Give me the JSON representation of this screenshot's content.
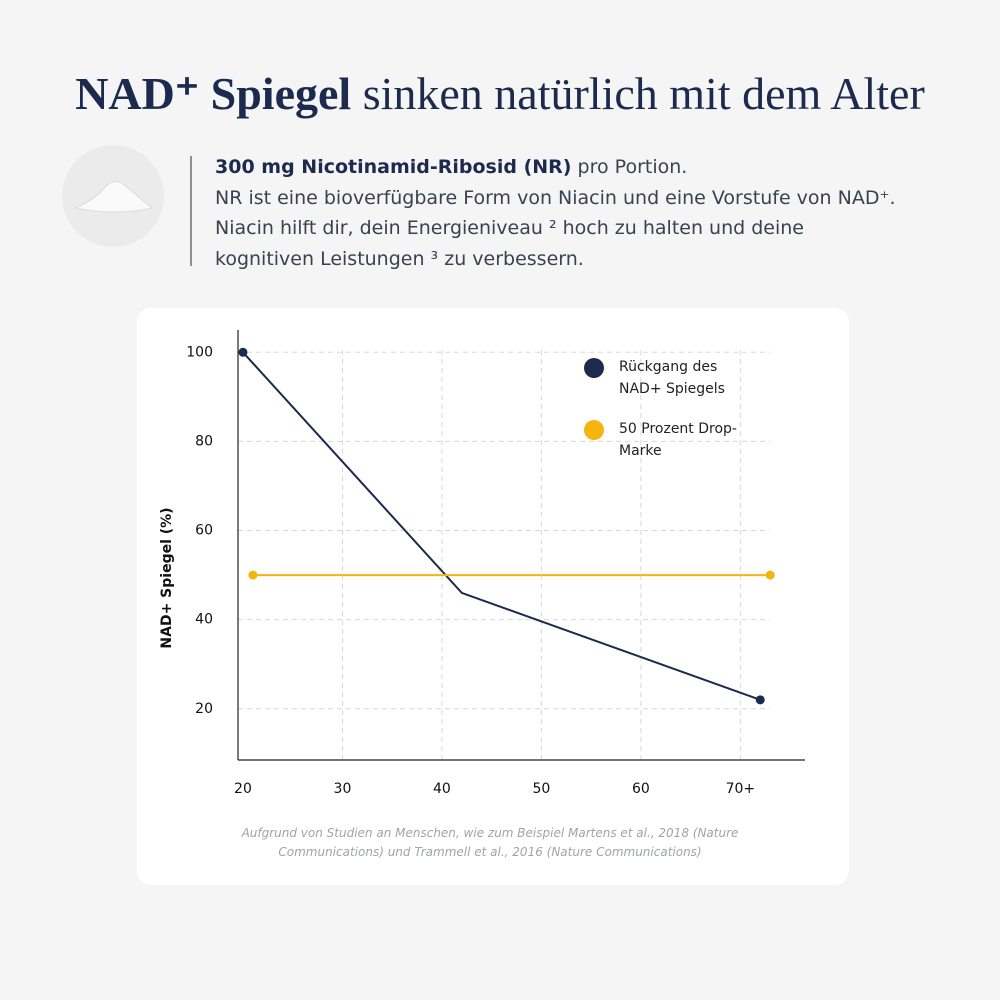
{
  "header": {
    "title_bold": "NAD⁺ Spiegel",
    "title_rest": "sinken natürlich mit dem Alter",
    "desc_bold": "300 mg Nicotinamid-Ribosid (NR)",
    "desc_line1_rest": "pro Portion.",
    "desc_line2": "NR ist eine bioverfügbare Form von Niacin und eine Vorstufe von NAD⁺.",
    "desc_line3": "Niacin hilft dir, dein Energieniveau ² hoch zu halten und deine",
    "desc_line4": "kognitiven Leistungen ³ zu verbessern."
  },
  "chart_data": {
    "type": "line",
    "ylabel": "NAD+ Spiegel (%)",
    "series": [
      {
        "name": "Rückgang des NAD+ Spiegels",
        "color": "#1c2a4d",
        "x": [
          20,
          42,
          72
        ],
        "values": [
          100,
          46,
          22
        ]
      },
      {
        "name": "50 Prozent Drop-Marke",
        "color": "#f5b50f",
        "x": [
          21,
          73
        ],
        "values": [
          50,
          50
        ]
      }
    ],
    "xlim": [
      19.5,
      76.5
    ],
    "xticks": [
      20,
      30,
      40,
      50,
      60,
      {
        "value": 70,
        "label": "70+"
      }
    ],
    "ylim": [
      8.5,
      105
    ],
    "yticks": [
      20,
      40,
      60,
      80,
      100
    ],
    "grid": true,
    "legend": "upper right",
    "note": "Aufgrund von Studien an Menschen, wie zum Beispiel Martens et al., 2018 (Nature Communications) und Trammell et al., 2016 (Nature Communications)"
  }
}
